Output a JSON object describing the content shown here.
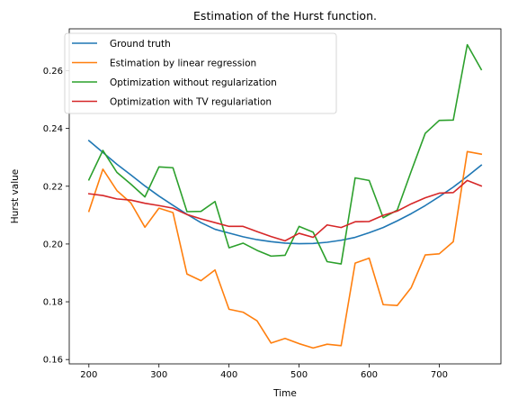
{
  "chart_data": {
    "type": "line",
    "title": "Estimation of the Hurst function.",
    "xlabel": "Time",
    "ylabel": "Hurst value",
    "xlim": [
      172,
      788
    ],
    "ylim": [
      0.1585,
      0.2745
    ],
    "xticks": [
      200,
      300,
      400,
      500,
      600,
      700
    ],
    "yticks": [
      0.16,
      0.18,
      0.2,
      0.22,
      0.24,
      0.26
    ],
    "ytick_labels": [
      "0.16",
      "0.18",
      "0.20",
      "0.22",
      "0.24",
      "0.26"
    ],
    "grid": false,
    "legend_position": "top-left",
    "x": [
      200,
      220,
      240,
      260,
      280,
      300,
      320,
      340,
      360,
      380,
      400,
      420,
      440,
      460,
      480,
      500,
      520,
      540,
      560,
      580,
      600,
      620,
      640,
      660,
      680,
      700,
      720,
      740,
      760
    ],
    "series": [
      {
        "name": "Ground truth",
        "color": "#1f77b4",
        "values": [
          0.2358,
          0.2317,
          0.2276,
          0.2239,
          0.2201,
          0.2166,
          0.2134,
          0.2103,
          0.2074,
          0.2051,
          0.2038,
          0.2025,
          0.2015,
          0.2008,
          0.2003,
          0.2001,
          0.2002,
          0.2006,
          0.2013,
          0.2023,
          0.2039,
          0.2057,
          0.208,
          0.2105,
          0.2133,
          0.2164,
          0.2197,
          0.2234,
          0.2273
        ]
      },
      {
        "name": "Estimation by linear regression",
        "color": "#ff7f0e",
        "values": [
          0.2113,
          0.2259,
          0.2185,
          0.2142,
          0.2058,
          0.2124,
          0.2109,
          0.1896,
          0.1873,
          0.191,
          0.1774,
          0.1764,
          0.1734,
          0.1657,
          0.1673,
          0.1655,
          0.164,
          0.1653,
          0.1648,
          0.1934,
          0.1951,
          0.179,
          0.1787,
          0.1849,
          0.1962,
          0.1966,
          0.2008,
          0.232,
          0.2311
        ]
      },
      {
        "name": "Optimization without regularization",
        "color": "#2ca02c",
        "values": [
          0.2222,
          0.2324,
          0.2248,
          0.2207,
          0.2163,
          0.2267,
          0.2264,
          0.2112,
          0.2113,
          0.2147,
          0.1987,
          0.2003,
          0.1978,
          0.1958,
          0.1961,
          0.2061,
          0.2041,
          0.1939,
          0.1931,
          0.2229,
          0.222,
          0.2091,
          0.2117,
          0.2252,
          0.2383,
          0.2428,
          0.2429,
          0.269,
          0.2604
        ]
      },
      {
        "name": "Optimization with TV regulariation",
        "color": "#d62728",
        "values": [
          0.2174,
          0.2168,
          0.2156,
          0.2152,
          0.2141,
          0.2133,
          0.2124,
          0.2102,
          0.2087,
          0.2074,
          0.2061,
          0.2061,
          0.2043,
          0.2026,
          0.2011,
          0.2037,
          0.2023,
          0.2066,
          0.2057,
          0.2077,
          0.2078,
          0.2099,
          0.2114,
          0.2139,
          0.216,
          0.2176,
          0.2178,
          0.222,
          0.2201
        ]
      }
    ]
  }
}
